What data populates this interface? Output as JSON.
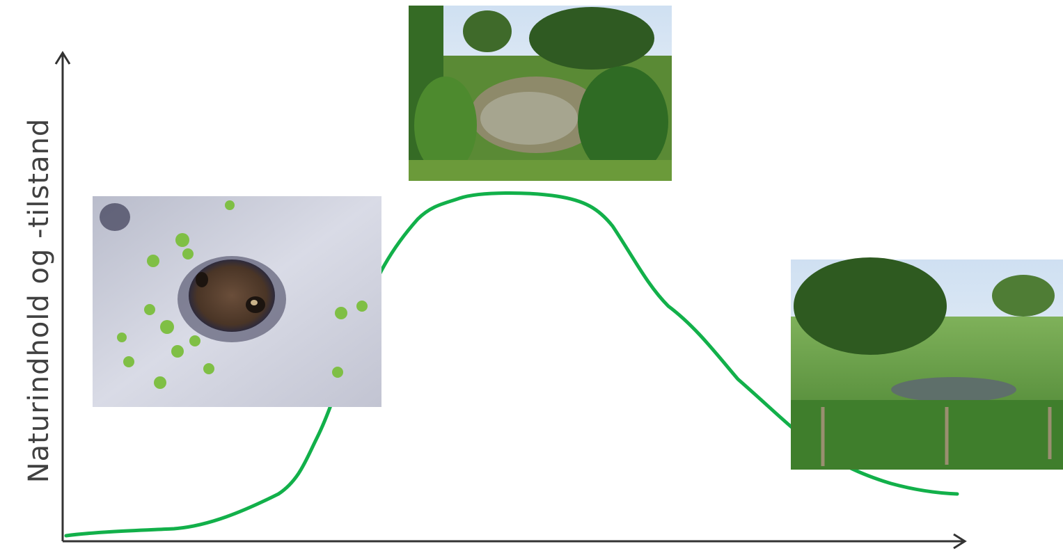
{
  "axis": {
    "y_label": "Naturindhold og -tilstand"
  }
}
